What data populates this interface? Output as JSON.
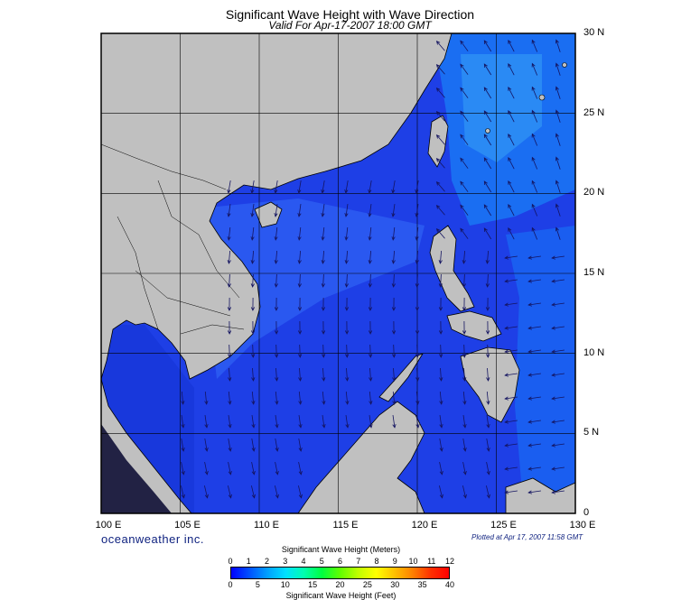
{
  "title": "Significant Wave Height with Wave Direction",
  "subtitle": "Valid For Apr-17-2007 18:00 GMT",
  "brand": "oceanweather inc.",
  "plotted": "Plotted at Apr 17, 2007 11:58 GMT",
  "lat_labels": [
    "30 N",
    "25 N",
    "20 N",
    "15 N",
    "10 N",
    "5 N",
    "0"
  ],
  "lon_labels": [
    "100 E",
    "105 E",
    "110 E",
    "115 E",
    "120 E",
    "125 E",
    "130 E"
  ],
  "legend": {
    "title_top": "Significant Wave Height (Meters)",
    "title_bottom": "Significant Wave Height (Feet)",
    "meters_ticks": [
      "0",
      "1",
      "2",
      "3",
      "4",
      "5",
      "6",
      "7",
      "8",
      "9",
      "10",
      "11",
      "12"
    ],
    "feet_ticks": [
      "0",
      "5",
      "10",
      "15",
      "20",
      "25",
      "30",
      "35",
      "40"
    ],
    "colors": [
      "#0000ff",
      "#0050ff",
      "#00a0ff",
      "#00e0ff",
      "#00ffb0",
      "#00ff40",
      "#60ff00",
      "#c0ff00",
      "#ffff00",
      "#ffc000",
      "#ff8000",
      "#ff3000",
      "#ff0000"
    ]
  },
  "colors": {
    "land": "#c0c0c0",
    "wave_low": "#2140e6",
    "wave_mid": "#1a44ec",
    "wave_high": "#1278f2",
    "arrow": "#1a1a5a"
  }
}
